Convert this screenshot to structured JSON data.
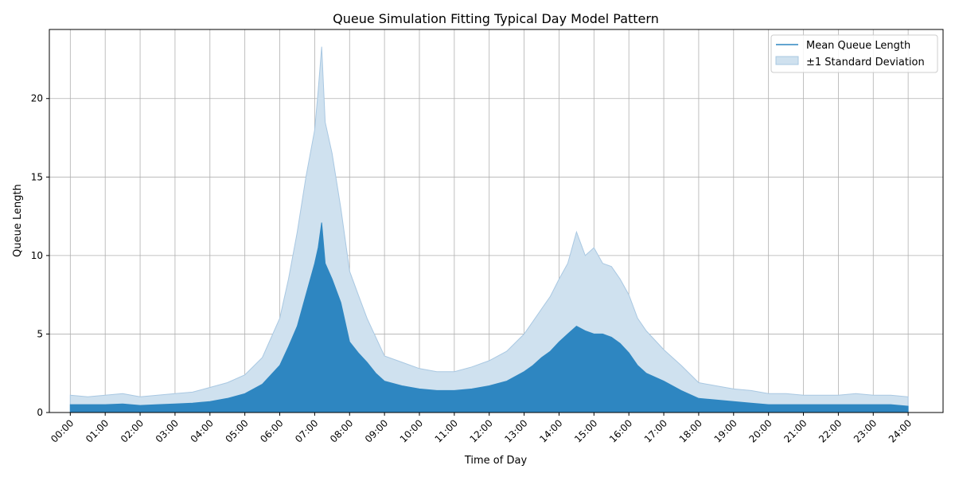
{
  "chart_data": {
    "type": "area",
    "title": "Queue Simulation Fitting Typical Day Model Pattern",
    "xlabel": "Time of Day",
    "ylabel": "Queue Length",
    "xlim_hours": [
      -0.6,
      25.0
    ],
    "ylim": [
      0,
      24.4
    ],
    "x_tick_labels": [
      "00:00",
      "01:00",
      "02:00",
      "03:00",
      "04:00",
      "05:00",
      "06:00",
      "07:00",
      "08:00",
      "09:00",
      "10:00",
      "11:00",
      "12:00",
      "13:00",
      "14:00",
      "15:00",
      "16:00",
      "17:00",
      "18:00",
      "19:00",
      "20:00",
      "21:00",
      "22:00",
      "23:00",
      "24:00"
    ],
    "y_ticks": [
      0,
      5,
      10,
      15,
      20
    ],
    "grid": true,
    "legend_position": "top-right",
    "colors": {
      "mean": "#2e86c1",
      "band": "#cfe1ef",
      "band_edge": "#a9c8e2",
      "grid": "#b0b0b0"
    },
    "series": [
      {
        "name": "Mean Queue Length",
        "x_hours": [
          0,
          0.5,
          1,
          1.5,
          2,
          2.5,
          3,
          3.5,
          4,
          4.5,
          5,
          5.5,
          6,
          6.25,
          6.5,
          6.75,
          7,
          7.1,
          7.2,
          7.3,
          7.5,
          7.75,
          8,
          8.25,
          8.5,
          8.75,
          9,
          9.5,
          10,
          10.5,
          11,
          11.5,
          12,
          12.5,
          13,
          13.25,
          13.5,
          13.75,
          14,
          14.25,
          14.5,
          14.75,
          15,
          15.25,
          15.5,
          15.75,
          16,
          16.25,
          16.5,
          17,
          17.5,
          18,
          18.5,
          19,
          19.5,
          20,
          20.5,
          21,
          21.5,
          22,
          22.5,
          23,
          23.5,
          24
        ],
        "values": [
          0.5,
          0.5,
          0.5,
          0.55,
          0.45,
          0.5,
          0.55,
          0.6,
          0.7,
          0.9,
          1.2,
          1.8,
          3.0,
          4.2,
          5.5,
          7.5,
          9.5,
          10.5,
          12.1,
          9.5,
          8.5,
          7.0,
          4.5,
          3.8,
          3.2,
          2.5,
          2.0,
          1.7,
          1.5,
          1.4,
          1.4,
          1.5,
          1.7,
          2.0,
          2.6,
          3.0,
          3.5,
          3.9,
          4.5,
          5.0,
          5.5,
          5.2,
          5.0,
          5.0,
          4.8,
          4.4,
          3.8,
          3.0,
          2.5,
          2.0,
          1.4,
          0.9,
          0.8,
          0.7,
          0.6,
          0.5,
          0.5,
          0.5,
          0.5,
          0.5,
          0.5,
          0.5,
          0.5,
          0.4
        ]
      },
      {
        "name": "±1 Standard Deviation",
        "x_hours": [
          0,
          0.5,
          1,
          1.5,
          2,
          2.5,
          3,
          3.5,
          4,
          4.5,
          5,
          5.5,
          6,
          6.25,
          6.5,
          6.75,
          7,
          7.1,
          7.2,
          7.3,
          7.5,
          7.75,
          8,
          8.25,
          8.5,
          8.75,
          9,
          9.5,
          10,
          10.5,
          11,
          11.5,
          12,
          12.5,
          13,
          13.25,
          13.5,
          13.75,
          14,
          14.25,
          14.5,
          14.75,
          15,
          15.25,
          15.5,
          15.75,
          16,
          16.25,
          16.5,
          17,
          17.5,
          18,
          18.5,
          19,
          19.5,
          20,
          20.5,
          21,
          21.5,
          22,
          22.5,
          23,
          23.5,
          24
        ],
        "upper": [
          1.1,
          1.0,
          1.1,
          1.2,
          1.0,
          1.1,
          1.2,
          1.3,
          1.6,
          1.9,
          2.4,
          3.5,
          6.0,
          8.5,
          11.5,
          15.0,
          18.0,
          20.5,
          23.3,
          18.5,
          16.5,
          13.0,
          9.0,
          7.5,
          6.0,
          4.8,
          3.6,
          3.2,
          2.8,
          2.6,
          2.6,
          2.9,
          3.3,
          3.9,
          5.0,
          5.8,
          6.6,
          7.4,
          8.5,
          9.5,
          11.5,
          10.0,
          10.5,
          9.5,
          9.3,
          8.5,
          7.5,
          6.0,
          5.2,
          4.0,
          3.0,
          1.9,
          1.7,
          1.5,
          1.4,
          1.2,
          1.2,
          1.1,
          1.1,
          1.1,
          1.2,
          1.1,
          1.1,
          1.0
        ],
        "lower": [
          0,
          0,
          0,
          0,
          0,
          0,
          0,
          0,
          0,
          0,
          0,
          0,
          0,
          0,
          0,
          0,
          0,
          0,
          0,
          0,
          0,
          0,
          0,
          0,
          0,
          0,
          0,
          0,
          0,
          0,
          0,
          0,
          0,
          0,
          0,
          0,
          0,
          0,
          0,
          0,
          0,
          0,
          0,
          0,
          0,
          0,
          0,
          0,
          0,
          0,
          0,
          0,
          0,
          0,
          0,
          0,
          0,
          0,
          0,
          0,
          0,
          0,
          0,
          0
        ]
      }
    ]
  }
}
